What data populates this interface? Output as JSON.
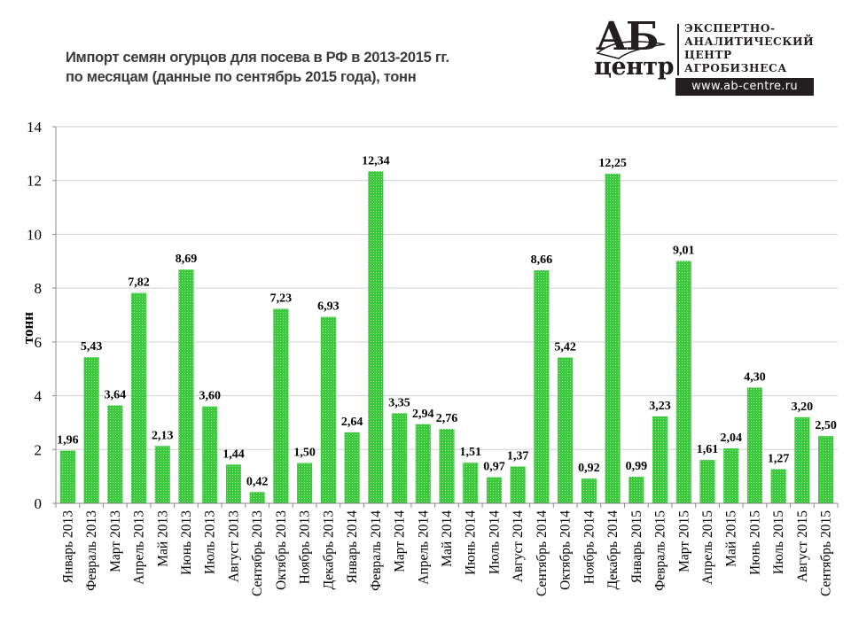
{
  "header": {
    "title_line1": "Импорт семян огурцов для посева в РФ в 2013-2015 гг.",
    "title_line2": "по месяцам (данные по сентябрь 2015 года), тонн"
  },
  "logo": {
    "mark_top": "АБ",
    "mark_bottom": "центр",
    "lines": [
      "ЭКСПЕРТНО-",
      "АНАЛИТИЧЕСКИЙ",
      "ЦЕНТР",
      "АГРОБИЗНЕСА"
    ],
    "url": "www.ab-centre.ru"
  },
  "chart_data": {
    "type": "bar",
    "title": "Импорт семян огурцов для посева в РФ в 2013-2015 гг. по месяцам (данные по сентябрь 2015 года), тонн",
    "xlabel": "",
    "ylabel": "тонн",
    "ylim": [
      0,
      14
    ],
    "yticks": [
      0,
      2,
      4,
      6,
      8,
      10,
      12,
      14
    ],
    "grid": true,
    "legend": "none",
    "bar_color": "#3cc83c",
    "categories": [
      "Январь 2013",
      "Февраль 2013",
      "Март 2013",
      "Апрель 2013",
      "Май 2013",
      "Июнь 2013",
      "Июль 2013",
      "Август 2013",
      "Сентябрь 2013",
      "Октябрь 2013",
      "Ноябрь 2013",
      "Декабрь 2013",
      "Январь 2014",
      "Февраль 2014",
      "Март 2014",
      "Апрель 2014",
      "Май 2014",
      "Июнь 2014",
      "Июль 2014",
      "Август 2014",
      "Сентябрь 2014",
      "Октябрь 2014",
      "Ноябрь 2014",
      "Декабрь 2014",
      "Январь 2015",
      "Февраль 2015",
      "Март 2015",
      "Апрель 2015",
      "Май 2015",
      "Июнь 2015",
      "Июль 2015",
      "Август 2015",
      "Сентябрь 2015"
    ],
    "values": [
      1.96,
      5.43,
      3.64,
      7.82,
      2.13,
      8.69,
      3.6,
      1.44,
      0.42,
      7.23,
      1.5,
      6.93,
      2.64,
      12.34,
      3.35,
      2.94,
      2.76,
      1.51,
      0.97,
      1.37,
      8.66,
      5.42,
      0.92,
      12.25,
      0.99,
      3.23,
      9.01,
      1.61,
      2.04,
      4.3,
      1.27,
      3.2,
      2.5
    ],
    "data_labels": [
      "1,96",
      "5,43",
      "3,64",
      "7,82",
      "2,13",
      "8,69",
      "3,60",
      "1,44",
      "0,42",
      "7,23",
      "1,50",
      "6,93",
      "2,64",
      "12,34",
      "3,35",
      "2,94",
      "2,76",
      "1,51",
      "0,97",
      "1,37",
      "8,66",
      "5,42",
      "0,92",
      "12,25",
      "0,99",
      "3,23",
      "9,01",
      "1,61",
      "2,04",
      "4,30",
      "1,27",
      "3,20",
      "2,50"
    ]
  }
}
